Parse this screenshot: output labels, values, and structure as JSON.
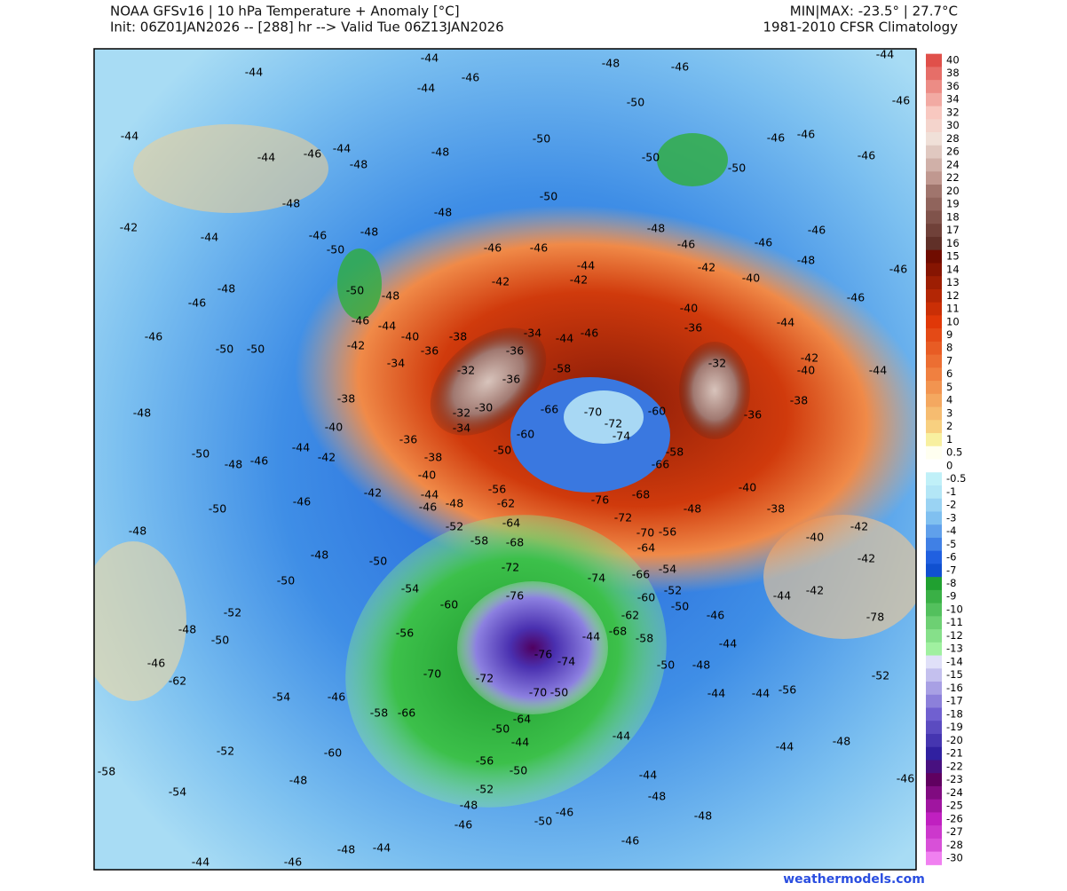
{
  "header": {
    "title": "NOAA GFSv16 | 10 hPa Temperature + Anomaly [°C]",
    "subtitle": "Init: 06Z01JAN2026 -- [288] hr --> Valid Tue 06Z13JAN2026",
    "minmax": "MIN|MAX: -23.5° | 27.7°C",
    "climatology": "1981-2010 CFSR Climatology"
  },
  "colorbar": {
    "labels": [
      40,
      38,
      36,
      34,
      32,
      30,
      28,
      26,
      24,
      22,
      20,
      19,
      18,
      17,
      16,
      15,
      14,
      13,
      12,
      11,
      10,
      9,
      8,
      7,
      6,
      5,
      4,
      3,
      2,
      1,
      0.5,
      0,
      -0.5,
      -1,
      -2,
      -3,
      -4,
      -5,
      -6,
      -7,
      -8,
      -9,
      -10,
      -11,
      -12,
      -13,
      -14,
      -15,
      -16,
      -17,
      -18,
      -19,
      -20,
      -21,
      -22,
      -23,
      -24,
      -25,
      -26,
      -27,
      -28,
      -30
    ]
  },
  "map": {
    "contour_labels": [
      -44,
      -48,
      -46,
      -44,
      -44,
      -44,
      -46,
      -50,
      -46,
      -44,
      -44,
      -46,
      -44,
      -48,
      -48,
      -50,
      -46,
      -46,
      -50,
      -50,
      -46,
      -50,
      -48,
      -48,
      -42,
      -44,
      -48,
      -48,
      -46,
      -46,
      -46,
      -46,
      -46,
      -46,
      -46,
      -48,
      -50,
      -48,
      -46,
      -50,
      -48,
      -44,
      -42,
      -42,
      -42,
      -40,
      -46,
      -46,
      -46,
      -44,
      -40,
      -42,
      -38,
      -34,
      -44,
      -50,
      -50,
      -36,
      -36,
      -44,
      -46,
      -40,
      -36,
      -34,
      -32,
      -36,
      -58,
      -32,
      -42,
      -44,
      -40,
      -48,
      -38,
      -32,
      -30,
      -34,
      -66,
      -70,
      -72,
      -60,
      -38,
      -36,
      -40,
      -36,
      -50,
      -60,
      -74,
      -50,
      -48,
      -46,
      -44,
      -42,
      -38,
      -66,
      -58,
      -40,
      -56,
      -68,
      -40,
      -50,
      -46,
      -42,
      -44,
      -48,
      -62,
      -76,
      -48,
      -38,
      -48,
      -46,
      -52,
      -58,
      -64,
      -72,
      -70,
      -56,
      -42,
      -40,
      -48,
      -50,
      -68,
      -64,
      -42,
      -50,
      -54,
      -72,
      -74,
      -66,
      -54,
      -52,
      -60,
      -76,
      -60,
      -50,
      -46,
      -44,
      -42,
      -52,
      -48,
      -56,
      -50,
      -62,
      -68,
      -58,
      -78,
      -76,
      -74,
      -44,
      -46,
      -62,
      -70,
      -72,
      -70,
      -50,
      -50,
      -48,
      -44,
      -52,
      -54,
      -46,
      -44,
      -44,
      -56,
      -58,
      -66,
      -64,
      -50,
      -44,
      -48,
      -52,
      -60,
      -44,
      -44,
      -58,
      -56,
      -50,
      -48,
      -44,
      -46,
      -54,
      -52,
      -48,
      -48,
      -48,
      -46,
      -50,
      -46,
      -46,
      -48,
      -44,
      -44,
      -46
    ]
  },
  "footer": {
    "source": "weathermodels.com"
  }
}
